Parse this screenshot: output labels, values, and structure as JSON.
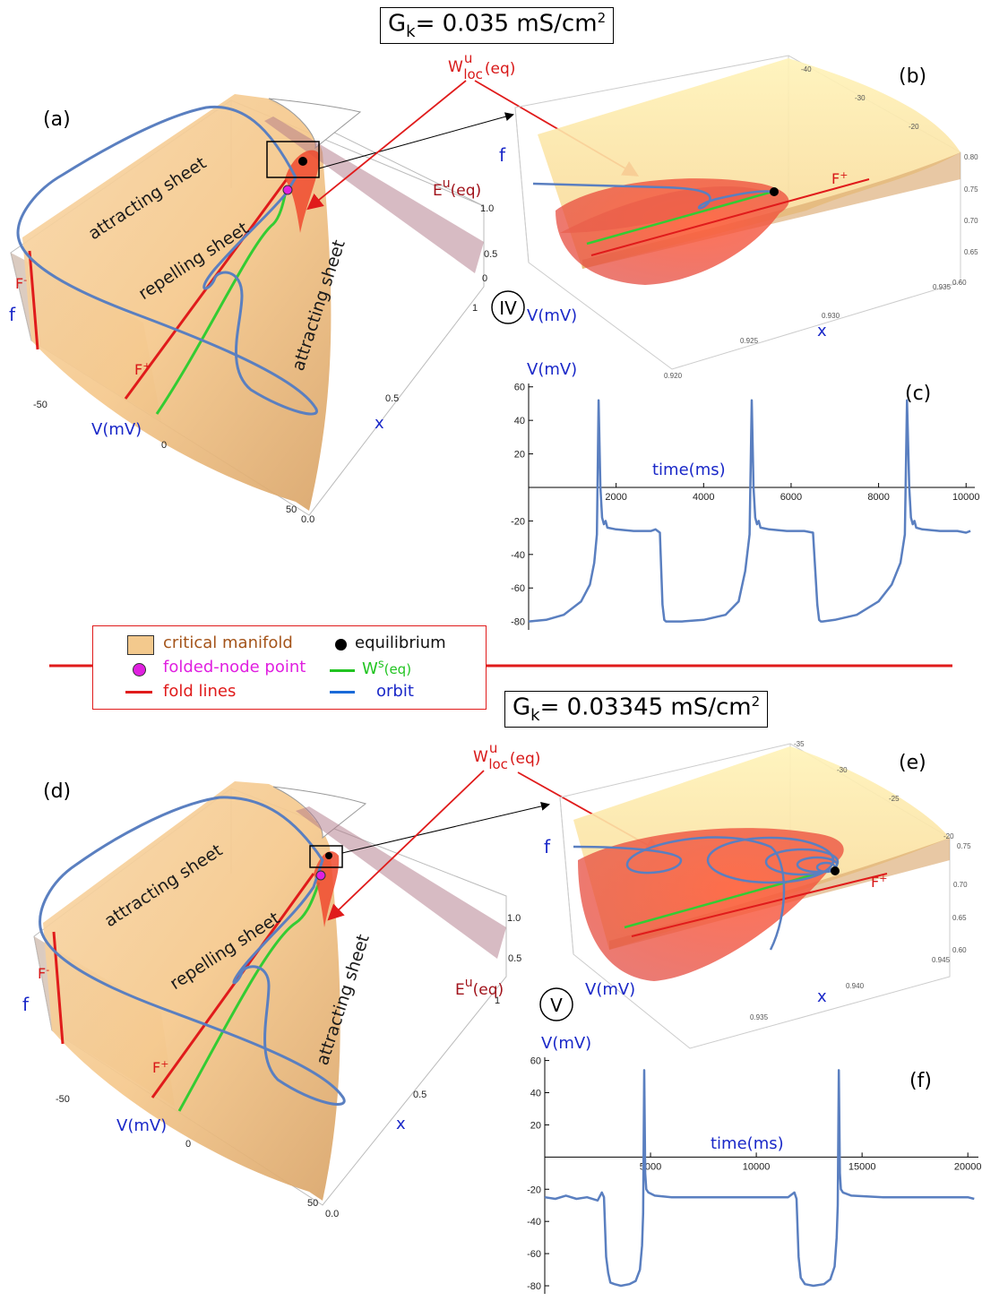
{
  "top": {
    "title": "G",
    "title_sub": "k",
    "title_val": "= 0.035 mS/cm",
    "title_sup": "2",
    "panel_a": "(a)",
    "panel_b": "(b)",
    "panel_c": "(c)",
    "regime": "IV",
    "wloc_w": "W",
    "wloc_sup": "u",
    "wloc_sub": "loc",
    "wloc_eq": "(eq)",
    "eu_e": "E",
    "eu_sup": "u",
    "eu_eq": "(eq)",
    "sheet_att1": "attracting sheet",
    "sheet_rep": "repelling sheet",
    "sheet_att2": "attracting sheet",
    "f_label": "f",
    "v_label": "V(mV)",
    "x_label": "x",
    "fplus": "F",
    "fplus_sup": "+",
    "fminus": "F",
    "fminus_sup": "-",
    "v_ticks": [
      "-50",
      "0",
      "50"
    ],
    "x_ticks": [
      "0.0",
      "0.5",
      "1"
    ],
    "f_ticks": [
      "0",
      "0.5",
      "1.0"
    ],
    "b_top_ticks": [
      "-40",
      "-30",
      "-20"
    ],
    "b_right_ticks": [
      "0.80",
      "0.75",
      "0.70",
      "0.65",
      "0.60"
    ],
    "b_x_ticks": [
      "0.935",
      "0.930",
      "0.925",
      "0.920"
    ]
  },
  "bottom": {
    "title": "G",
    "title_sub": "k",
    "title_val": "= 0.03345 mS/cm",
    "title_sup": "2",
    "panel_d": "(d)",
    "panel_e": "(e)",
    "panel_f": "(f)",
    "regime": "V",
    "b_top_ticks": [
      "-35",
      "-30",
      "-25",
      "-20"
    ],
    "b_right_ticks": [
      "0.75",
      "0.70",
      "0.65",
      "0.60"
    ],
    "b_x_ticks": [
      "0.945",
      "0.940",
      "0.935"
    ]
  },
  "legend": {
    "critical_manifold": "critical manifold",
    "folded_node": "folded-node point",
    "fold_lines": "fold lines",
    "equilibrium": "equilibrium",
    "ws_w": "W",
    "ws_sup": "s",
    "ws_eq": "(eq)",
    "orbit": "orbit"
  },
  "colors": {
    "manifold": "#f3c98d",
    "fold": "#e01b1b",
    "folded_node": "#e020e0",
    "ws": "#22c422",
    "orbit": "#5a7fc0",
    "label_blue": "#1a28c8",
    "eu_plane": "#b08090"
  },
  "chart_data": [
    {
      "id": "c",
      "type": "line",
      "title": "",
      "xlabel": "time(ms)",
      "ylabel": "V(mV)",
      "xlim": [
        0,
        10200
      ],
      "ylim": [
        -85,
        62
      ],
      "xticks": [
        2000,
        4000,
        6000,
        8000,
        10000
      ],
      "yticks": [
        -80,
        -60,
        -40,
        -20,
        20,
        40,
        60
      ],
      "series": [
        {
          "x": [
            0,
            400,
            800,
            1200,
            1400,
            1500,
            1560,
            1600,
            1640,
            1680,
            1720,
            1760,
            1800,
            2000,
            2400,
            2800,
            2900,
            3000,
            3060,
            3100,
            3140,
            3500,
            4000,
            4500,
            4800,
            4950,
            5050,
            5100,
            5140,
            5180,
            5220,
            5260,
            5300,
            5500,
            5900,
            6300,
            6500,
            6600,
            6640,
            6680,
            6720,
            7000,
            7500,
            8000,
            8300,
            8500,
            8600,
            8650,
            8700,
            8740,
            8780,
            8820,
            8860,
            9000,
            9400,
            9800,
            10000,
            10100
          ],
          "values": [
            -80,
            -79,
            -76,
            -68,
            -58,
            -45,
            -28,
            52,
            0,
            -18,
            -22,
            -20,
            -24,
            -25,
            -26,
            -26,
            -25,
            -27,
            -70,
            -79,
            -80,
            -80,
            -79,
            -76,
            -68,
            -50,
            -28,
            52,
            0,
            -18,
            -22,
            -20,
            -24,
            -25,
            -26,
            -26,
            -27,
            -70,
            -79,
            -80,
            -80,
            -79,
            -76,
            -68,
            -58,
            -45,
            -28,
            52,
            0,
            -18,
            -22,
            -20,
            -24,
            -25,
            -26,
            -26,
            -27,
            -26
          ]
        }
      ]
    },
    {
      "id": "f",
      "type": "line",
      "title": "",
      "xlabel": "time(ms)",
      "ylabel": "V(mV)",
      "xlim": [
        0,
        20500
      ],
      "ylim": [
        -85,
        62
      ],
      "xticks": [
        5000,
        10000,
        15000,
        20000
      ],
      "yticks": [
        -80,
        -60,
        -40,
        -20,
        20,
        40,
        60
      ],
      "series": [
        {
          "x": [
            0,
            500,
            1000,
            1500,
            2000,
            2500,
            2700,
            2800,
            2900,
            3000,
            3100,
            3300,
            3600,
            4000,
            4300,
            4500,
            4600,
            4650,
            4700,
            4750,
            4800,
            4900,
            5200,
            6000,
            8000,
            10000,
            11500,
            11800,
            11900,
            12000,
            12100,
            12300,
            12700,
            13200,
            13500,
            13700,
            13800,
            13850,
            13900,
            13950,
            14000,
            14100,
            14500,
            16000,
            18000,
            20000,
            20300
          ],
          "values": [
            -25,
            -26,
            -24,
            -26,
            -25,
            -27,
            -22,
            -25,
            -62,
            -72,
            -78,
            -79,
            -80,
            -79,
            -77,
            -70,
            -55,
            -35,
            54,
            -10,
            -20,
            -22,
            -24,
            -25,
            -25,
            -25,
            -25,
            -22,
            -26,
            -62,
            -75,
            -79,
            -80,
            -79,
            -76,
            -68,
            -50,
            -30,
            54,
            -10,
            -20,
            -22,
            -24,
            -25,
            -25,
            -25,
            -26
          ]
        }
      ]
    }
  ]
}
